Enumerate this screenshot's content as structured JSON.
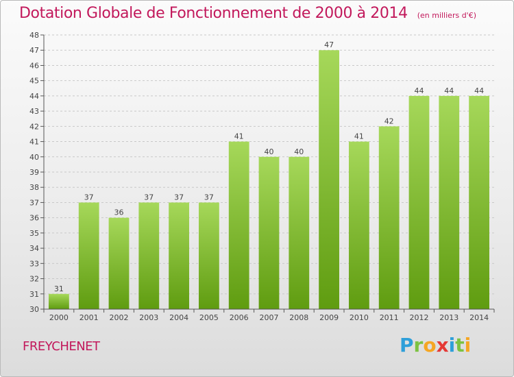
{
  "header": {
    "title": "Dotation Globale de Fonctionnement de 2000 à 2014",
    "subtitle": "(en milliers d'€)"
  },
  "footer": {
    "commune": "FREYCHENET",
    "logo_letters": [
      "P",
      "r",
      "o",
      "x",
      "i",
      "t",
      "i"
    ],
    "logo_colors": [
      "#2e9fd9",
      "#7cc242",
      "#f5a623",
      "#e53935",
      "#2e9fd9",
      "#7cc242",
      "#f5a623"
    ]
  },
  "colors": {
    "bar_light": "#a6d85a",
    "bar_dark": "#5f9c10",
    "axis": "#555555",
    "grid": "#c8c8c8",
    "title": "#c2185b"
  },
  "chart_data": {
    "type": "bar",
    "title": "Dotation Globale de Fonctionnement de 2000 à 2014",
    "subtitle": "(en milliers d'€)",
    "xlabel": "",
    "ylabel": "",
    "categories": [
      "2000",
      "2001",
      "2002",
      "2003",
      "2004",
      "2005",
      "2006",
      "2007",
      "2008",
      "2009",
      "2010",
      "2011",
      "2012",
      "2013",
      "2014"
    ],
    "values": [
      31,
      37,
      36,
      37,
      37,
      37,
      41,
      40,
      40,
      47,
      41,
      42,
      44,
      44,
      44
    ],
    "ylim": [
      30,
      48
    ],
    "yticks": [
      30,
      31,
      32,
      33,
      34,
      35,
      36,
      37,
      38,
      39,
      40,
      41,
      42,
      43,
      44,
      45,
      46,
      47,
      48
    ],
    "grid": true,
    "data_labels": true
  }
}
